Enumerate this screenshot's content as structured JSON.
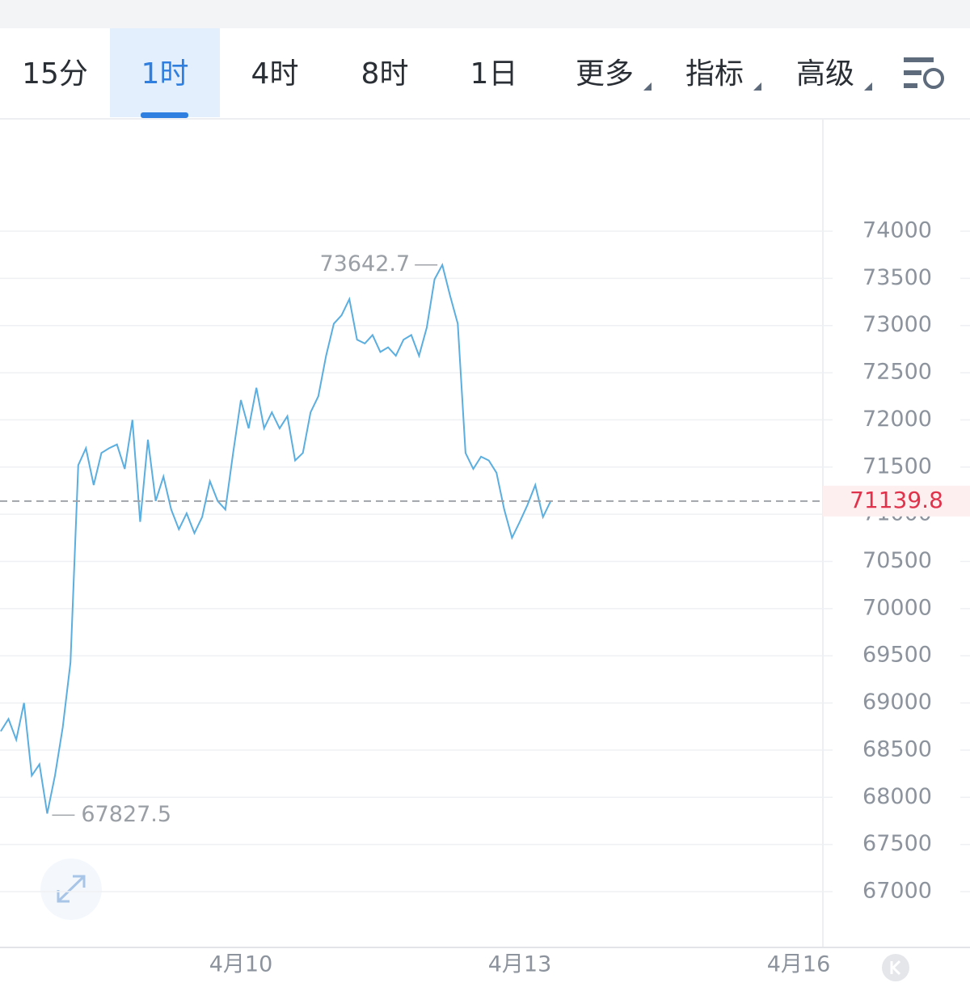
{
  "tabs": [
    "15分",
    "1时",
    "4时",
    "8时",
    "1日",
    "更多",
    "指标",
    "高级"
  ],
  "active_tab": 1,
  "chart_data": {
    "type": "line",
    "color": "#5aaee0",
    "grid": true,
    "ylim": [
      66500,
      75500
    ],
    "yticks": [
      67000,
      67500,
      68000,
      68500,
      69000,
      69500,
      70000,
      70500,
      71000,
      71500,
      72000,
      72500,
      73000,
      73500,
      74000
    ],
    "categories": [
      null,
      null,
      null,
      null,
      null,
      null,
      null,
      null,
      null,
      null,
      null,
      null,
      null,
      null,
      null,
      null,
      null,
      null,
      null,
      null,
      null,
      null,
      null,
      null,
      null,
      null,
      null,
      null,
      null,
      null,
      null,
      "4月10",
      null,
      null,
      null,
      null,
      null,
      null,
      null,
      null,
      null,
      null,
      null,
      null,
      null,
      null,
      null,
      null,
      null,
      null,
      null,
      null,
      null,
      null,
      null,
      null,
      null,
      null,
      null,
      null,
      null,
      null,
      null,
      null,
      null,
      null,
      null,
      "4月13",
      null,
      null,
      null,
      null,
      null,
      null,
      null,
      null,
      null,
      null,
      null,
      null,
      null,
      null,
      null,
      null,
      null,
      null,
      null,
      null,
      null,
      null,
      null,
      null,
      null,
      null,
      null,
      null,
      null,
      null,
      null,
      null,
      null,
      null,
      null,
      "4月16"
    ],
    "values": [
      68700,
      68830,
      68610,
      69000,
      68230,
      68350,
      67827.5,
      68230,
      68740,
      69430,
      71520,
      71700,
      71310,
      71650,
      71700,
      71740,
      71480,
      72000,
      70920,
      71790,
      71140,
      71400,
      71050,
      70840,
      71010,
      70800,
      70970,
      71350,
      71140,
      71050,
      71650,
      72210,
      71910,
      72340,
      71910,
      72080,
      71910,
      72040,
      71570,
      71650,
      72080,
      72250,
      72680,
      73020,
      73110,
      73280,
      72850,
      72810,
      72900,
      72720,
      72770,
      72680,
      72850,
      72900,
      72680,
      72980,
      73490,
      73642.7,
      73320,
      73020,
      71650,
      71480,
      71610,
      71570,
      71440,
      71050,
      70750,
      70920,
      71100,
      71310,
      70970,
      71139.8,
      null,
      null,
      null,
      null,
      null,
      null,
      null,
      null,
      null,
      null,
      null,
      null,
      null,
      null,
      null,
      null,
      null,
      null,
      null,
      null,
      null,
      null,
      null,
      null,
      null,
      null,
      null,
      null,
      null,
      null,
      null,
      null
    ]
  }
}
